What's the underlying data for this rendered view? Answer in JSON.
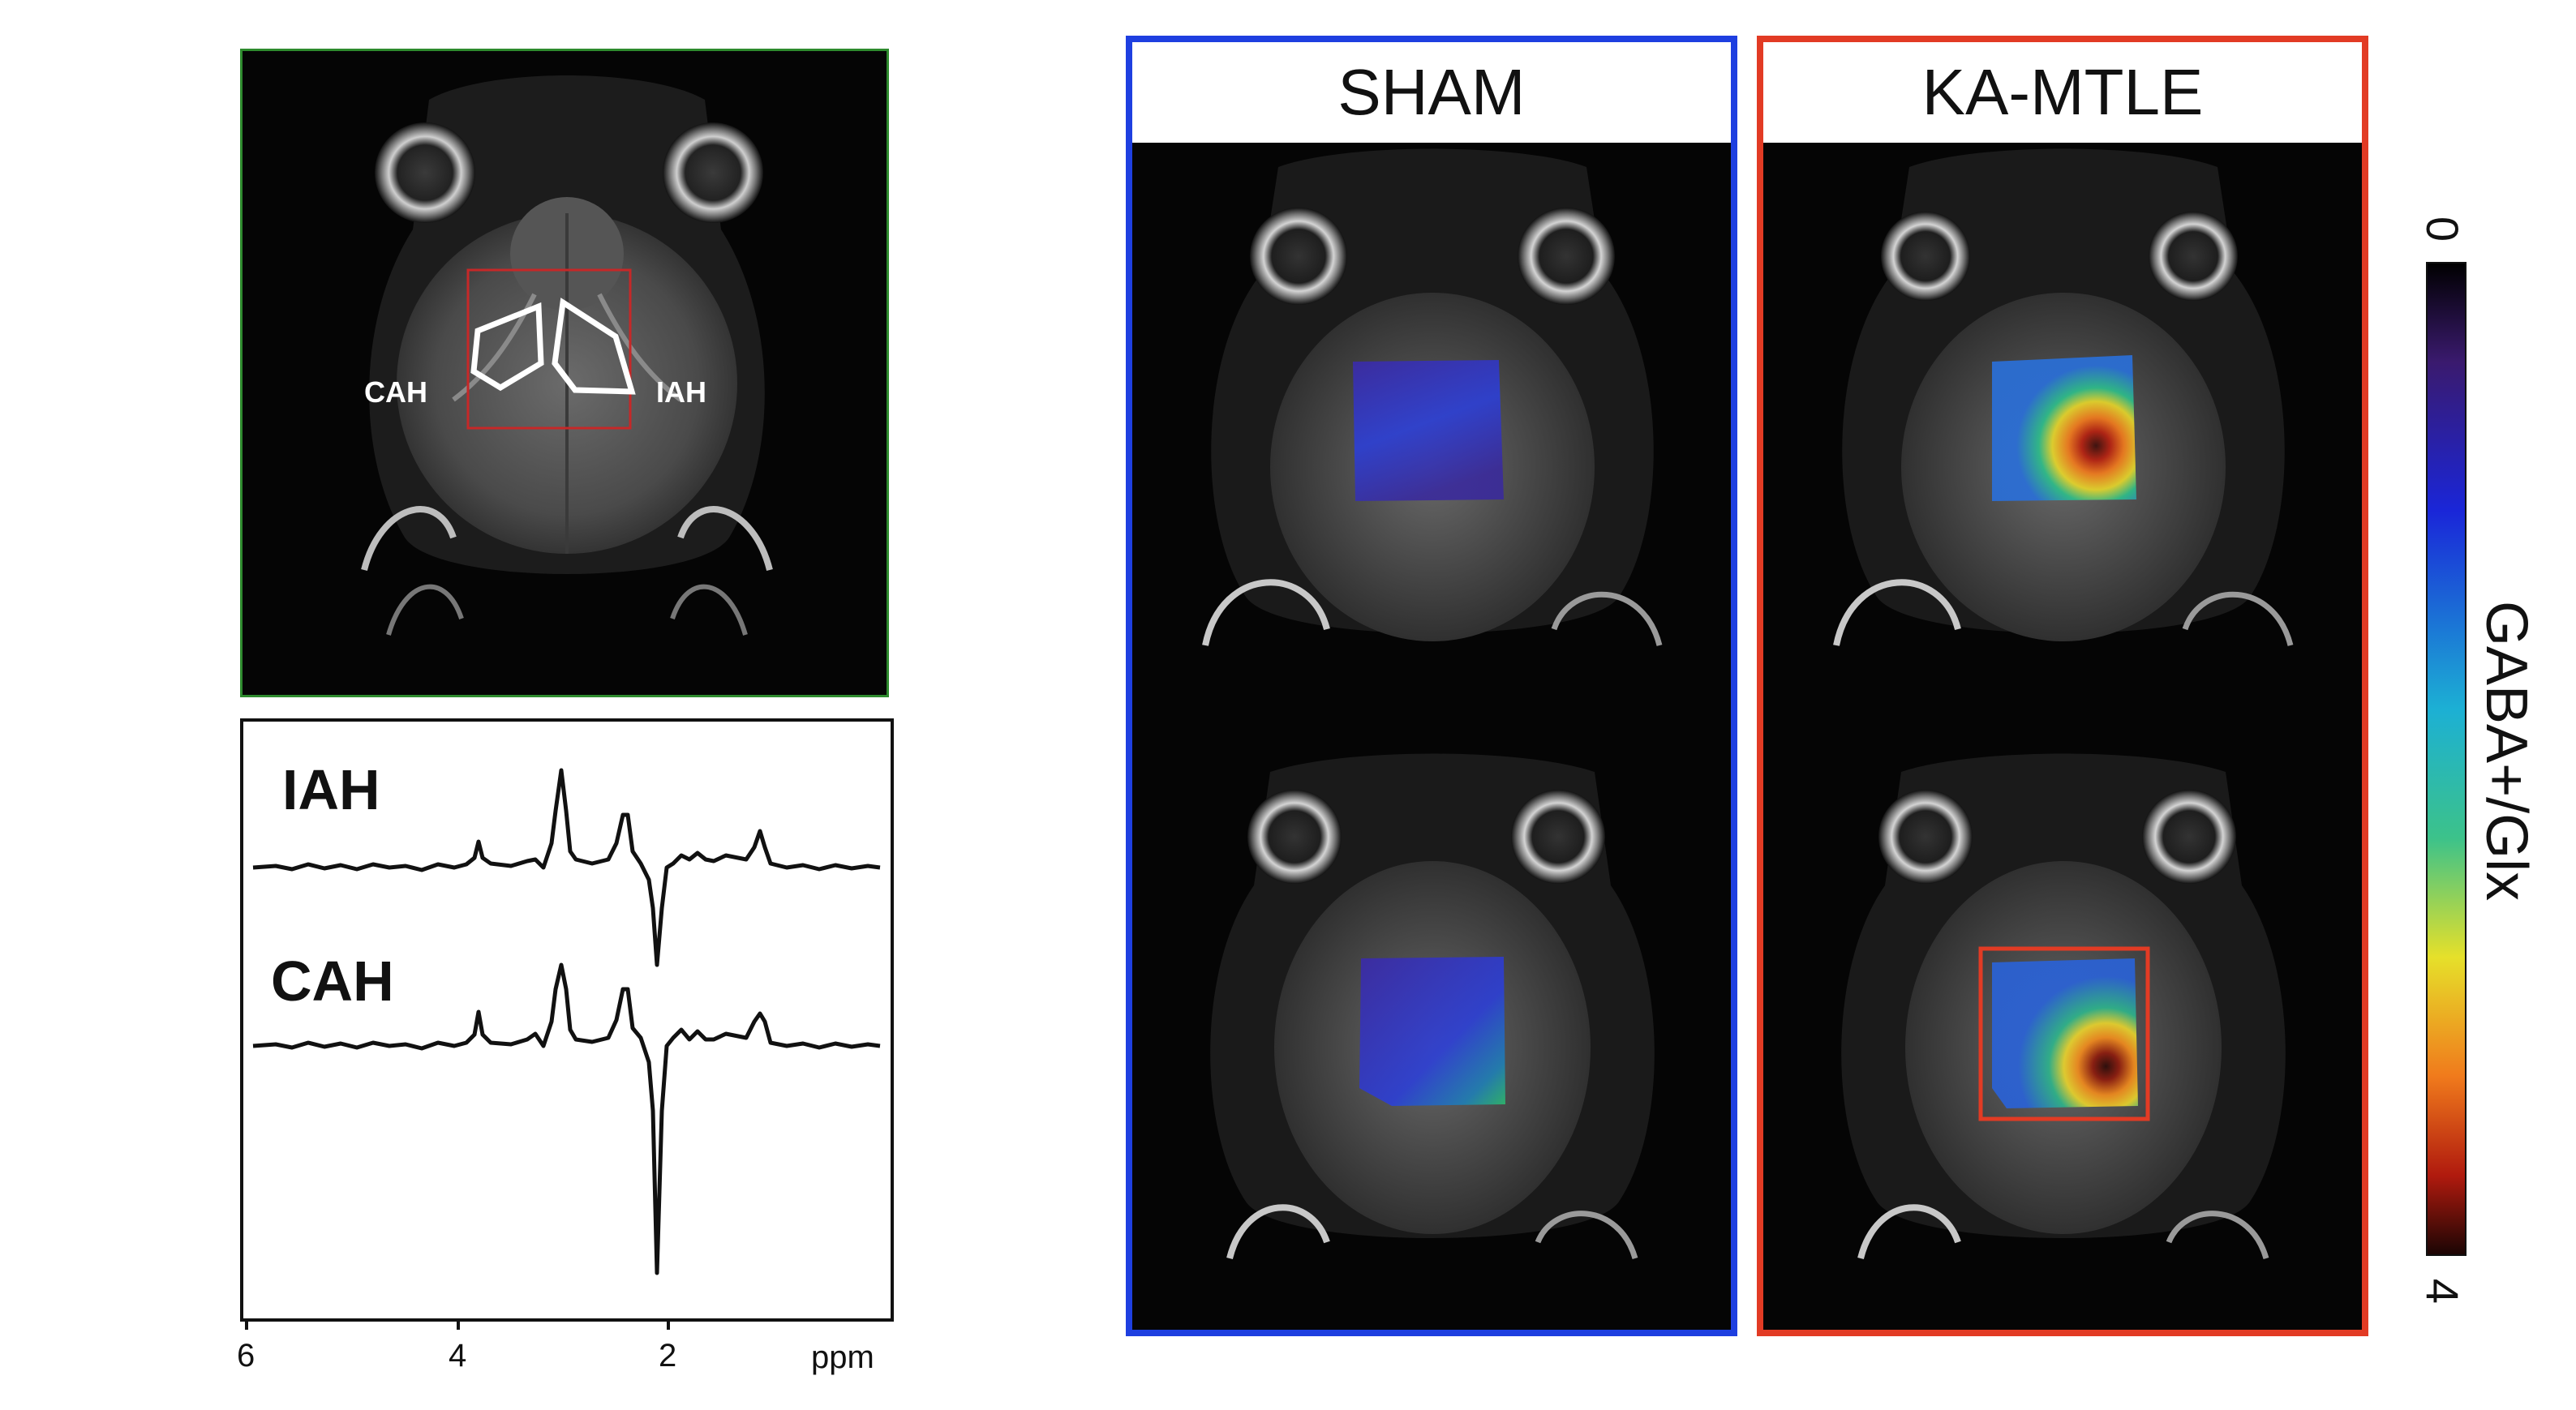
{
  "reference_panel": {
    "roi_labels": {
      "left": "CAH",
      "right": "IAH"
    },
    "frame_color": "#2e8b2e",
    "roi_box_color": "#c62828",
    "roi_outline_color": "#ffffff"
  },
  "spectra_panel": {
    "traces": [
      {
        "label": "IAH"
      },
      {
        "label": "CAH"
      }
    ],
    "x_axis": {
      "ticks": [
        "6",
        "4",
        "2"
      ],
      "unit": "ppm",
      "tick_values": [
        6,
        4,
        2
      ]
    }
  },
  "groups": [
    {
      "title": "SHAM",
      "frame_color": "#1e3fe0",
      "map": "low"
    },
    {
      "title": "KA-MTLE",
      "frame_color": "#e23b24",
      "map": "high"
    }
  ],
  "colorbar": {
    "label": "GABA+/Glx",
    "min_label": "0",
    "max_label": "4",
    "range": [
      0,
      4
    ],
    "colormap": "jet-to-black"
  }
}
